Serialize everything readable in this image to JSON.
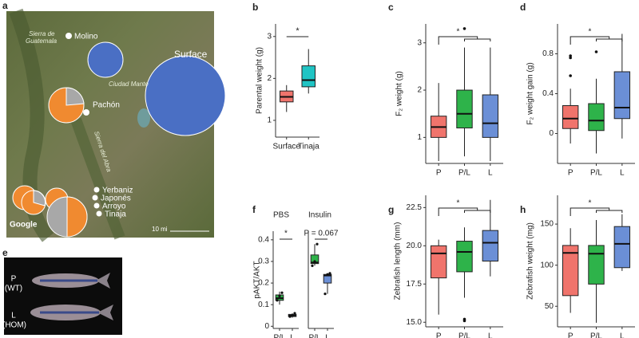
{
  "panel_labels": [
    "a",
    "b",
    "c",
    "d",
    "e",
    "f",
    "g",
    "h"
  ],
  "map": {
    "labels": [
      "Sierra de",
      "Guatemala",
      "Molino",
      "Surface",
      "Ciudad Mante",
      "Pachón",
      "Sierra del Abra",
      "Yerbaniz",
      "Japonés",
      "Arroyo",
      "Tinaja",
      "Google",
      "10 mi"
    ]
  },
  "photo": {
    "labels": [
      "P",
      "(WT)",
      "L",
      "(HOM)"
    ]
  },
  "chart_data": [
    {
      "type": "box",
      "ylabel": "Parental weight (g)",
      "categories": [
        "Surface",
        "Tinaja"
      ],
      "colors": [
        "#f0746c",
        "#20c4c4"
      ],
      "boxes": [
        {
          "low": 1.2,
          "q1": 1.44,
          "median": 1.56,
          "q3": 1.7,
          "high": 1.84
        },
        {
          "low": 1.64,
          "q1": 1.8,
          "median": 1.96,
          "q3": 2.3,
          "high": 2.7
        }
      ],
      "outliers": [
        [],
        []
      ],
      "ylim": [
        0.6,
        3.3
      ],
      "yticks": [
        1,
        2,
        3
      ],
      "annotation": "*"
    },
    {
      "type": "box",
      "ylabel": "F₂ weight (g)",
      "categories": [
        "P",
        "P/L",
        "L"
      ],
      "colors": [
        "#f0746c",
        "#2eb34a",
        "#6b8fd6"
      ],
      "boxes": [
        {
          "low": 0.5,
          "q1": 1.0,
          "median": 1.22,
          "q3": 1.45,
          "high": 2.15
        },
        {
          "low": 0.6,
          "q1": 1.2,
          "median": 1.5,
          "q3": 2.0,
          "high": 2.9
        },
        {
          "low": 0.5,
          "q1": 1.0,
          "median": 1.3,
          "q3": 1.9,
          "high": 2.9
        }
      ],
      "outliers": [
        [],
        [
          3.3
        ],
        []
      ],
      "ylim": [
        0.45,
        3.4
      ],
      "yticks": [
        1,
        2,
        3
      ],
      "annotation": "*"
    },
    {
      "type": "box",
      "ylabel": "F₂ weight gain (g)",
      "categories": [
        "P",
        "P/L",
        "L"
      ],
      "colors": [
        "#f0746c",
        "#2eb34a",
        "#6b8fd6"
      ],
      "boxes": [
        {
          "low": -0.1,
          "q1": 0.05,
          "median": 0.15,
          "q3": 0.28,
          "high": 0.45
        },
        {
          "low": -0.2,
          "q1": 0.03,
          "median": 0.13,
          "q3": 0.3,
          "high": 0.55
        },
        {
          "low": -0.05,
          "q1": 0.15,
          "median": 0.26,
          "q3": 0.62,
          "high": 1.0
        }
      ],
      "outliers": [
        [
          0.58,
          0.76,
          0.78
        ],
        [
          0.82
        ],
        []
      ],
      "ylim": [
        -0.3,
        1.1
      ],
      "yticks": [
        0,
        0.4,
        0.8
      ],
      "annotation": "*"
    },
    {
      "type": "box",
      "title": "PBS",
      "ylabel": "pAKT/AKT",
      "categories": [
        "P/L",
        "L"
      ],
      "colors": [
        "#2eb34a",
        "#6b8fd6"
      ],
      "boxes": [
        {
          "low": 0.1,
          "q1": 0.12,
          "median": 0.13,
          "q3": 0.145,
          "high": 0.16
        },
        {
          "low": 0.04,
          "q1": 0.045,
          "median": 0.05,
          "q3": 0.055,
          "high": 0.06
        }
      ],
      "outliers": [
        [],
        []
      ],
      "points": [
        [
          0.12,
          0.14,
          0.155
        ],
        [
          0.045,
          0.05,
          0.06
        ]
      ],
      "ylim": [
        -0.01,
        0.44
      ],
      "yticks": [
        0,
        0.1,
        0.2,
        0.3,
        0.4
      ],
      "annotation": "*"
    },
    {
      "type": "box",
      "title": "Insulin",
      "categories": [
        "P/L",
        "L"
      ],
      "colors": [
        "#2eb34a",
        "#6b8fd6"
      ],
      "boxes": [
        {
          "low": 0.28,
          "q1": 0.29,
          "median": 0.295,
          "q3": 0.33,
          "high": 0.38
        },
        {
          "low": 0.15,
          "q1": 0.2,
          "median": 0.235,
          "q3": 0.24,
          "high": 0.245
        }
      ],
      "outliers": [
        [],
        []
      ],
      "points": [
        [
          0.28,
          0.3,
          0.38
        ],
        [
          0.15,
          0.24,
          0.245
        ]
      ],
      "ylim": [
        -0.01,
        0.44
      ],
      "annotation": "P = 0.067"
    },
    {
      "type": "box",
      "ylabel": "Zebrafish length (mm)",
      "categories": [
        "P",
        "P/L",
        "L"
      ],
      "colors": [
        "#f0746c",
        "#2eb34a",
        "#6b8fd6"
      ],
      "boxes": [
        {
          "low": 15.5,
          "q1": 17.9,
          "median": 19.5,
          "q3": 20.0,
          "high": 20.4
        },
        {
          "low": 16.6,
          "q1": 18.3,
          "median": 19.6,
          "q3": 20.3,
          "high": 21.2
        },
        {
          "low": 18.0,
          "q1": 19.0,
          "median": 20.2,
          "q3": 21.0,
          "high": 23.0
        }
      ],
      "outliers": [
        [],
        [
          15.1,
          15.2
        ],
        []
      ],
      "ylim": [
        14.7,
        23.3
      ],
      "yticks": [
        {
          "value": 15,
          "label": "15.0"
        },
        {
          "value": 17.5,
          "label": "17.5"
        },
        {
          "value": 20,
          "label": "20.0"
        },
        {
          "value": 22.5,
          "label": "22.5"
        }
      ],
      "annotation": "*"
    },
    {
      "type": "box",
      "ylabel": "Zebrafish weight (mg)",
      "categories": [
        "P",
        "P/L",
        "L"
      ],
      "colors": [
        "#f0746c",
        "#2eb34a",
        "#6b8fd6"
      ],
      "boxes": [
        {
          "low": 42,
          "q1": 63,
          "median": 115,
          "q3": 124,
          "high": 145
        },
        {
          "low": 30,
          "q1": 77,
          "median": 114,
          "q3": 124,
          "high": 155
        },
        {
          "low": 93,
          "q1": 97,
          "median": 126,
          "q3": 147,
          "high": 162
        }
      ],
      "outliers": [
        [],
        [],
        []
      ],
      "ylim": [
        25,
        185
      ],
      "yticks": [
        50,
        100,
        150
      ],
      "annotation": "*"
    }
  ]
}
